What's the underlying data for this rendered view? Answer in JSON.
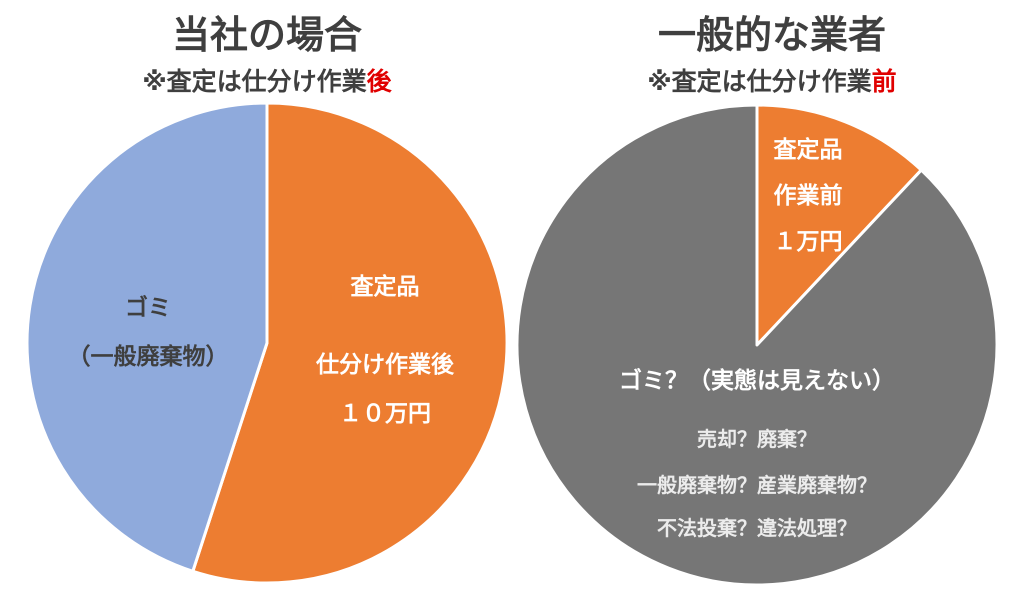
{
  "colors": {
    "title_text": "#3f3f3f",
    "emphasis": "#e00000",
    "waste_blue": "#8faadc",
    "appraised_orange": "#ed7d31",
    "unknown_gray": "#767676",
    "label_dark": "#3f3f3f",
    "label_white": "#ffffff",
    "label_light": "#ececec"
  },
  "chart_data": [
    {
      "type": "pie",
      "title": "当社の場合",
      "subtitle_prefix": "※査定は仕分け作業",
      "subtitle_emphasis": "後",
      "slices": [
        {
          "key": "appraised",
          "value": 55,
          "color": "#ed7d31",
          "lines": [
            "査定品",
            "",
            "仕分け作業後",
            "１０万円"
          ]
        },
        {
          "key": "waste",
          "value": 45,
          "color": "#8faadc",
          "lines": [
            "ゴミ",
            "（一般廃棄物）"
          ]
        }
      ]
    },
    {
      "type": "pie",
      "title": "一般的な業者",
      "subtitle_prefix": "※査定は仕分け作業",
      "subtitle_emphasis": "前",
      "slices": [
        {
          "key": "appraised",
          "value": 12,
          "color": "#ed7d31",
          "lines": [
            "査定品",
            "作業前",
            "１万円"
          ]
        },
        {
          "key": "unknown",
          "value": 88,
          "color": "#767676",
          "lines": [
            "ゴミ？（実態は見えない）"
          ],
          "sublines": [
            "売却？廃棄？",
            "一般廃棄物？産業廃棄物？",
            "不法投棄？違法処理？"
          ]
        }
      ]
    }
  ]
}
